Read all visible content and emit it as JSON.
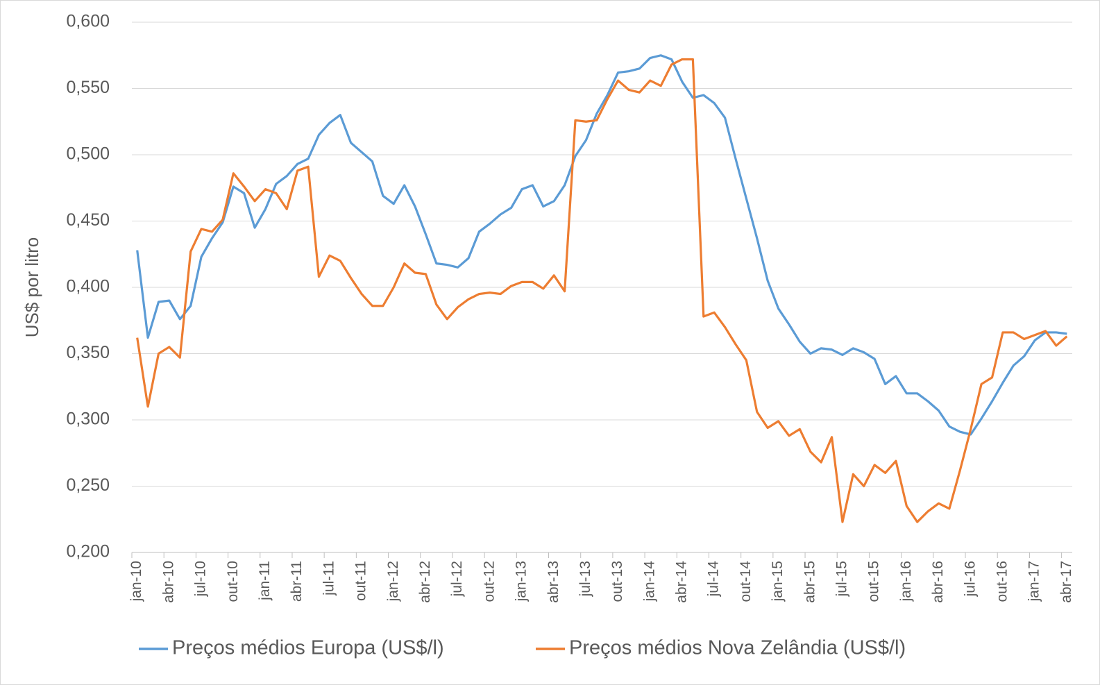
{
  "chart_data": {
    "type": "line",
    "y_label": "US$ por litro",
    "categories": [
      "jan-10",
      null,
      null,
      "abr-10",
      null,
      null,
      "jul-10",
      null,
      null,
      "out-10",
      null,
      null,
      "jan-11",
      null,
      null,
      "abr-11",
      null,
      null,
      "jul-11",
      null,
      null,
      "out-11",
      null,
      null,
      "jan-12",
      null,
      null,
      "abr-12",
      null,
      null,
      "jul-12",
      null,
      null,
      "out-12",
      null,
      null,
      "jan-13",
      null,
      null,
      "abr-13",
      null,
      null,
      "jul-13",
      null,
      null,
      "out-13",
      null,
      null,
      "jan-14",
      null,
      null,
      "abr-14",
      null,
      null,
      "jul-14",
      null,
      null,
      "out-14",
      null,
      null,
      "jan-15",
      null,
      null,
      "abr-15",
      null,
      null,
      "jul-15",
      null,
      null,
      "out-15",
      null,
      null,
      "jan-16",
      null,
      null,
      "abr-16",
      null,
      null,
      "jul-16",
      null,
      null,
      "out-16",
      null,
      null,
      "jan-17",
      null,
      null,
      "abr-17"
    ],
    "series": [
      {
        "name": "Preços médios Europa (US$/l)",
        "color": "#5b9bd5",
        "values": [
          0.428,
          0.362,
          0.389,
          0.39,
          0.376,
          0.386,
          0.423,
          0.437,
          0.449,
          0.476,
          0.471,
          0.445,
          0.459,
          0.478,
          0.484,
          0.493,
          0.497,
          0.515,
          0.524,
          0.53,
          0.509,
          0.502,
          0.495,
          0.469,
          0.463,
          0.477,
          0.461,
          0.44,
          0.418,
          0.417,
          0.415,
          0.422,
          0.442,
          0.448,
          0.455,
          0.46,
          0.474,
          0.477,
          0.461,
          0.465,
          0.477,
          0.499,
          0.511,
          0.531,
          0.545,
          0.562,
          0.563,
          0.565,
          0.573,
          0.575,
          0.572,
          0.555,
          0.543,
          0.545,
          0.539,
          0.528,
          0.497,
          0.467,
          0.437,
          0.405,
          0.384,
          0.372,
          0.359,
          0.35,
          0.354,
          0.353,
          0.349,
          0.354,
          0.351,
          0.346,
          0.327,
          0.333,
          0.32,
          0.32,
          0.314,
          0.307,
          0.295,
          0.291,
          0.289,
          0.301,
          0.314,
          0.328,
          0.341,
          0.348,
          0.36,
          0.366,
          0.366,
          0.365
        ]
      },
      {
        "name": "Preços médios Nova Zelândia (US$/l)",
        "color": "#ed7d31",
        "values": [
          0.362,
          0.31,
          0.35,
          0.355,
          0.347,
          0.427,
          0.444,
          0.442,
          0.451,
          0.486,
          0.476,
          0.465,
          0.474,
          0.471,
          0.459,
          0.488,
          0.491,
          0.408,
          0.424,
          0.42,
          0.407,
          0.395,
          0.386,
          0.386,
          0.4,
          0.418,
          0.411,
          0.41,
          0.387,
          0.376,
          0.385,
          0.391,
          0.395,
          0.396,
          0.395,
          0.401,
          0.404,
          0.404,
          0.399,
          0.409,
          0.397,
          0.526,
          0.525,
          0.526,
          0.542,
          0.556,
          0.549,
          0.547,
          0.556,
          0.552,
          0.568,
          0.572,
          0.572,
          0.378,
          0.381,
          0.37,
          0.357,
          0.345,
          0.306,
          0.294,
          0.299,
          0.288,
          0.293,
          0.276,
          0.268,
          0.287,
          0.223,
          0.259,
          0.25,
          0.266,
          0.26,
          0.269,
          0.235,
          0.223,
          0.231,
          0.237,
          0.233,
          0.262,
          0.293,
          0.327,
          0.332,
          0.366,
          0.366,
          0.361,
          0.364,
          0.367,
          0.356,
          0.363
        ]
      }
    ],
    "ylim": [
      0.2,
      0.6
    ],
    "yticks": [
      {
        "value": 0.2,
        "label": "0,200"
      },
      {
        "value": 0.25,
        "label": "0,250"
      },
      {
        "value": 0.3,
        "label": "0,300"
      },
      {
        "value": 0.35,
        "label": "0,350"
      },
      {
        "value": 0.4,
        "label": "0,400"
      },
      {
        "value": 0.45,
        "label": "0,450"
      },
      {
        "value": 0.5,
        "label": "0,500"
      },
      {
        "value": 0.55,
        "label": "0,550"
      },
      {
        "value": 0.6,
        "label": "0,600"
      }
    ],
    "grid": true,
    "legend": "bottom"
  }
}
